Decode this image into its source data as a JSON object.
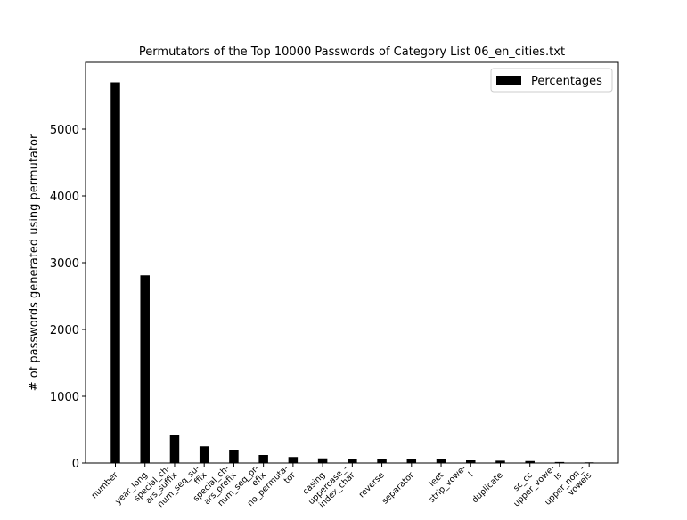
{
  "chart_data": {
    "type": "bar",
    "title": "Permutators of the Top 10000 Passwords of Category List 06_en_cities.txt",
    "xlabel": "",
    "ylabel": "# of passwords generated using permutator",
    "categories": [
      "number",
      "year_long",
      "special_ch-\nars_suffix",
      "num_seq_su-\nffix",
      "special_ch-\nars_prefix",
      "num_seq_pr-\nefix",
      "no_permuta-\ntor",
      "casing",
      "uppercase_-\nindex_char",
      "reverse",
      "separator",
      "leet",
      "strip_vowe-\nl",
      "duplicate",
      "sc_cc",
      "upper_vowe-\nls",
      "upper_non_-\nvowels"
    ],
    "series": [
      {
        "name": "Percentages",
        "color": "#000000",
        "values": [
          5700,
          2810,
          420,
          250,
          200,
          120,
          90,
          70,
          65,
          65,
          65,
          55,
          40,
          35,
          30,
          15,
          10
        ]
      }
    ],
    "ylim": [
      0,
      6000
    ],
    "yticks": [
      0,
      1000,
      2000,
      3000,
      4000,
      5000
    ],
    "grid": false,
    "legend_position": "top-right"
  }
}
